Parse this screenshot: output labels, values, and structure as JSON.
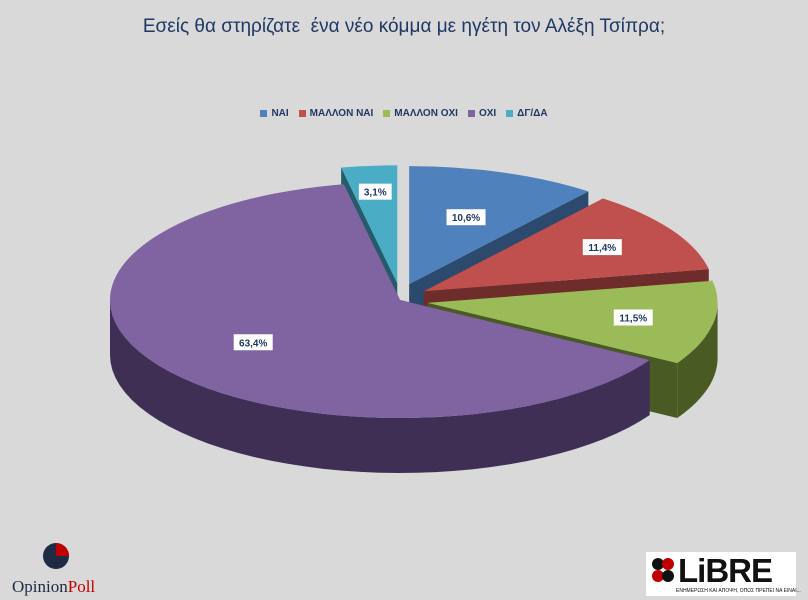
{
  "chart_data": {
    "type": "pie",
    "title": "Εσείς θα στηρίζατε  ένα νέο κόμμα με ηγέτη τον Αλέξη Τσίπρα;",
    "legend_position": "top",
    "categories": [
      "ΝΑΙ",
      "ΜΑΛΛΟΝ ΝΑΙ",
      "ΜΑΛΛΟΝ ΟΧΙ",
      "ΟΧΙ",
      "ΔΓ/ΔΑ"
    ],
    "values": [
      10.6,
      11.4,
      11.5,
      63.4,
      3.1
    ],
    "value_labels": [
      "10,6%",
      "11,4%",
      "11,5%",
      "63,4%",
      "3,1%"
    ],
    "colors": [
      "#4f81bd",
      "#c0504d",
      "#9bbb59",
      "#8064a2",
      "#4bacc6"
    ],
    "side_colors": [
      "#2c4a6e",
      "#6e2c2b",
      "#4a5a23",
      "#3f2f55",
      "#245c6b"
    ]
  },
  "brands": {
    "left_a": "Opinion",
    "left_b": "Poll",
    "right": "LiBRE",
    "right_tagline": "ΕΝΗΜΕΡΩΣΗ ΚΑΙ ΑΠΟΨΗ, ΟΠΩΣ ΠΡΕΠΕΙ ΝΑ ΕΙΝΑΙ..."
  }
}
